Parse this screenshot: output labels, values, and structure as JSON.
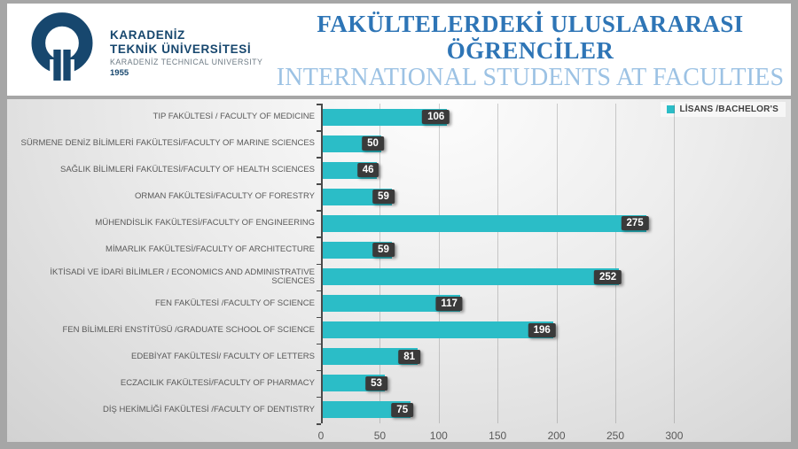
{
  "header": {
    "logo": {
      "line1": "KARADENİZ",
      "line2": "TEKNİK ÜNİVERSİTESİ",
      "line3": "KARADENİZ TECHNICAL UNIVERSITY",
      "line4": "1955"
    },
    "title_tr": "FAKÜLTELERDEKİ ULUSLARARASI ÖĞRENCİLER",
    "title_en": "INTERNATIONAL STUDENTS AT FACULTIES"
  },
  "legend": {
    "label": "LİSANS /BACHELOR'S"
  },
  "chart_data": {
    "type": "bar",
    "orientation": "horizontal",
    "title": "FAKÜLTELERDEKİ ULUSLARARASI ÖĞRENCİLER",
    "subtitle": "INTERNATIONAL STUDENTS AT FACULTIES",
    "series_name": "LİSANS /BACHELOR'S",
    "categories": [
      "TIP FAKÜLTESİ / FACULTY OF MEDICINE",
      "SÜRMENE DENİZ BİLİMLERİ FAKÜLTESİ/FACULTY OF MARINE SCIENCES",
      "SAĞLIK BİLİMLERİ FAKÜLTESİ/FACULTY OF HEALTH SCIENCES",
      "ORMAN FAKÜLTESİ/FACULTY OF FORESTRY",
      "MÜHENDİSLİK FAKÜLTESİ/FACULTY OF ENGINEERING",
      "MİMARLIK FAKÜLTESİ/FACULTY OF ARCHITECTURE",
      "İKTİSADİ VE İDARİ BİLİMLER / ECONOMICS AND ADMINISTRATIVE SCIENCES",
      "FEN FAKÜLTESİ /FACULTY OF SCIENCE",
      "FEN BİLİMLERİ ENSTİTÜSÜ /GRADUATE SCHOOL OF SCIENCE",
      "EDEBİYAT FAKÜLTESİ/ FACULTY OF LETTERS",
      "ECZACILIK FAKÜLTESİ/FACULTY OF PHARMACY",
      "DİŞ HEKİMLİĞİ FAKÜLTESİ /FACULTY OF DENTISTRY"
    ],
    "values": [
      106,
      50,
      46,
      59,
      275,
      59,
      252,
      117,
      196,
      81,
      53,
      75
    ],
    "x_ticks": [
      0,
      50,
      100,
      150,
      200,
      250,
      300
    ],
    "xlim": [
      0,
      385
    ],
    "grid": true,
    "legend_position": "top-right",
    "data_labels": true
  },
  "colors": {
    "bar": "#2bbdc7",
    "title_blue": "#2e75b6",
    "subtitle_blue": "#9cc2e4",
    "logo_navy": "#17476e",
    "chip_bg": "#3a3a3a",
    "chip_text": "#ffffff",
    "axis_text": "#595959"
  }
}
